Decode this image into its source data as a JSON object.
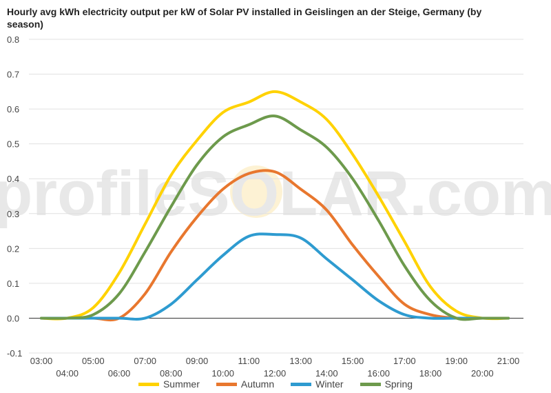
{
  "chart_data": {
    "type": "line",
    "title": "Hourly avg kWh electricity output per kW of Solar PV installed in Geislingen an der Steige, Germany (by season)",
    "xlabel": "",
    "ylabel": "",
    "ylim": [
      -0.1,
      0.8
    ],
    "yticks": [
      "-0.1",
      "0.0",
      "0.1",
      "0.2",
      "0.3",
      "0.4",
      "0.5",
      "0.6",
      "0.7",
      "0.8"
    ],
    "x_labels": [
      "03:00",
      "04:00",
      "05:00",
      "06:00",
      "07:00",
      "08:00",
      "09:00",
      "10:00",
      "11:00",
      "12:00",
      "13:00",
      "14:00",
      "15:00",
      "16:00",
      "17:00",
      "18:00",
      "19:00",
      "20:00",
      "21:00"
    ],
    "x": [
      3,
      4,
      5,
      6,
      7,
      8,
      9,
      10,
      11,
      12,
      13,
      14,
      15,
      16,
      17,
      18,
      19,
      20,
      21
    ],
    "grid": "horizontal",
    "legend_position": "bottom",
    "watermark": "profileSOLAR.com",
    "series": [
      {
        "name": "Summer",
        "color": "#ffd200",
        "values": [
          0.0,
          0.0,
          0.03,
          0.13,
          0.27,
          0.41,
          0.51,
          0.59,
          0.62,
          0.65,
          0.62,
          0.57,
          0.47,
          0.35,
          0.22,
          0.09,
          0.02,
          0.0,
          0.0
        ]
      },
      {
        "name": "Autumn",
        "color": "#e8772e",
        "values": [
          0.0,
          0.0,
          0.0,
          0.0,
          0.07,
          0.19,
          0.29,
          0.37,
          0.415,
          0.42,
          0.37,
          0.31,
          0.21,
          0.12,
          0.04,
          0.01,
          0.0,
          0.0,
          0.0
        ]
      },
      {
        "name": "Winter",
        "color": "#2e9bd0",
        "values": [
          0.0,
          0.0,
          0.0,
          0.0,
          0.0,
          0.04,
          0.11,
          0.18,
          0.235,
          0.24,
          0.23,
          0.17,
          0.11,
          0.05,
          0.01,
          0.0,
          0.0,
          0.0,
          0.0
        ]
      },
      {
        "name": "Spring",
        "color": "#6d9a4c",
        "values": [
          0.0,
          0.0,
          0.01,
          0.07,
          0.19,
          0.32,
          0.44,
          0.52,
          0.555,
          0.58,
          0.54,
          0.49,
          0.4,
          0.28,
          0.15,
          0.05,
          0.0,
          0.0,
          0.0
        ]
      }
    ]
  }
}
